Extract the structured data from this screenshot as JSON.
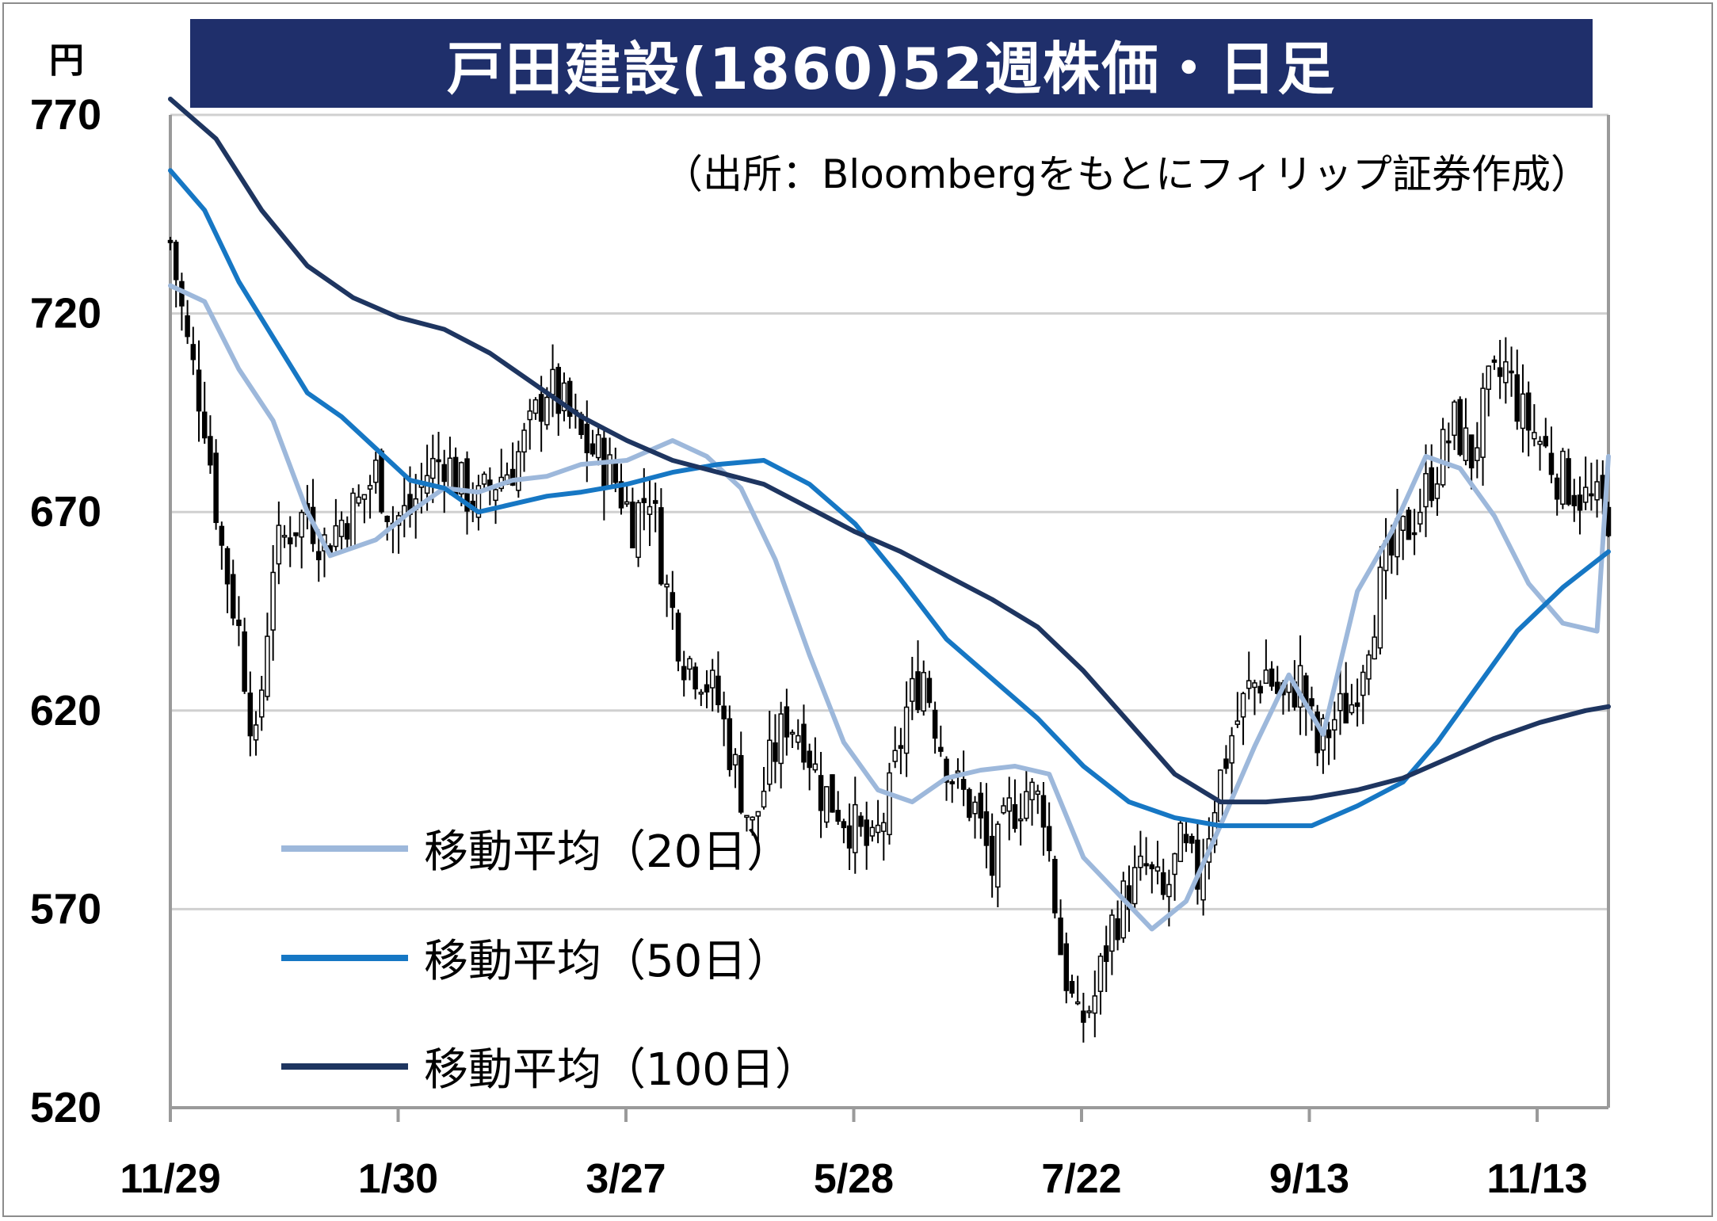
{
  "title": "戸田建設(1860)52週株価・日足",
  "unit": "円",
  "source": "（出所：Bloombergをもとにフィリップ証券作成）",
  "colors": {
    "title_bg": "#1f2f6b",
    "ma20": "#9db8db",
    "ma50": "#1677c4",
    "ma100": "#1e3560",
    "grid": "#d0d0d0",
    "axis": "#9a9a9a"
  },
  "legend": [
    {
      "label": "移動平均（20日）",
      "color": "#9db8db"
    },
    {
      "label": "移動平均（50日）",
      "color": "#1677c4"
    },
    {
      "label": "移動平均（100日）",
      "color": "#1e3560"
    }
  ],
  "chart_data": {
    "type": "candlestick",
    "title": "戸田建設(1860)52週株価・日足",
    "ylabel": "円",
    "ylim": [
      520,
      770
    ],
    "yticks": [
      770,
      720,
      670,
      620,
      570,
      520
    ],
    "xticks": [
      "11/29",
      "1/30",
      "3/27",
      "5/28",
      "7/22",
      "9/13",
      "11/13"
    ],
    "grid": true,
    "legend_position": "bottom-left",
    "close_path": [
      [
        0,
        738
      ],
      [
        3,
        712
      ],
      [
        6,
        694
      ],
      [
        9,
        661
      ],
      [
        12,
        640
      ],
      [
        15,
        610
      ],
      [
        18,
        658
      ],
      [
        21,
        666
      ],
      [
        24,
        670
      ],
      [
        27,
        662
      ],
      [
        30,
        668
      ],
      [
        33,
        672
      ],
      [
        36,
        680
      ],
      [
        39,
        668
      ],
      [
        42,
        670
      ],
      [
        45,
        680
      ],
      [
        48,
        684
      ],
      [
        51,
        676
      ],
      [
        54,
        672
      ],
      [
        57,
        678
      ],
      [
        60,
        682
      ],
      [
        63,
        690
      ],
      [
        66,
        702
      ],
      [
        69,
        696
      ],
      [
        72,
        688
      ],
      [
        75,
        684
      ],
      [
        78,
        678
      ],
      [
        81,
        668
      ],
      [
        84,
        676
      ],
      [
        87,
        650
      ],
      [
        90,
        634
      ],
      [
        93,
        630
      ],
      [
        96,
        622
      ],
      [
        99,
        605
      ],
      [
        102,
        590
      ],
      [
        105,
        606
      ],
      [
        108,
        618
      ],
      [
        111,
        614
      ],
      [
        114,
        600
      ],
      [
        117,
        596
      ],
      [
        120,
        590
      ],
      [
        123,
        584
      ],
      [
        126,
        598
      ],
      [
        129,
        620
      ],
      [
        132,
        630
      ],
      [
        135,
        612
      ],
      [
        138,
        600
      ],
      [
        141,
        595
      ],
      [
        144,
        580
      ],
      [
        147,
        594
      ],
      [
        150,
        600
      ],
      [
        153,
        596
      ],
      [
        156,
        560
      ],
      [
        159,
        540
      ],
      [
        162,
        548
      ],
      [
        165,
        566
      ],
      [
        168,
        575
      ],
      [
        171,
        580
      ],
      [
        174,
        572
      ],
      [
        177,
        585
      ],
      [
        180,
        578
      ],
      [
        183,
        598
      ],
      [
        186,
        614
      ],
      [
        189,
        625
      ],
      [
        192,
        630
      ],
      [
        195,
        622
      ],
      [
        198,
        628
      ],
      [
        201,
        610
      ],
      [
        204,
        618
      ],
      [
        207,
        622
      ],
      [
        210,
        640
      ],
      [
        213,
        656
      ],
      [
        216,
        664
      ],
      [
        219,
        672
      ],
      [
        222,
        682
      ],
      [
        225,
        692
      ],
      [
        228,
        684
      ],
      [
        231,
        700
      ],
      [
        234,
        706
      ],
      [
        237,
        694
      ],
      [
        240,
        688
      ],
      [
        243,
        680
      ],
      [
        246,
        676
      ],
      [
        249,
        672
      ],
      [
        252,
        670
      ]
    ],
    "series": [
      {
        "name": "移動平均（20日）",
        "points": [
          [
            0,
            727
          ],
          [
            6,
            723
          ],
          [
            12,
            706
          ],
          [
            18,
            693
          ],
          [
            24,
            670
          ],
          [
            28,
            659
          ],
          [
            36,
            663
          ],
          [
            42,
            670
          ],
          [
            48,
            676
          ],
          [
            54,
            675
          ],
          [
            60,
            678
          ],
          [
            66,
            679
          ],
          [
            72,
            682
          ],
          [
            80,
            683
          ],
          [
            88,
            688
          ],
          [
            94,
            684
          ],
          [
            100,
            676
          ],
          [
            106,
            658
          ],
          [
            112,
            634
          ],
          [
            118,
            612
          ],
          [
            124,
            600
          ],
          [
            130,
            597
          ],
          [
            136,
            603
          ],
          [
            142,
            605
          ],
          [
            148,
            606
          ],
          [
            154,
            604
          ],
          [
            160,
            583
          ],
          [
            166,
            574
          ],
          [
            172,
            565
          ],
          [
            178,
            572
          ],
          [
            184,
            591
          ],
          [
            190,
            611
          ],
          [
            196,
            629
          ],
          [
            202,
            614
          ],
          [
            208,
            650
          ],
          [
            214,
            665
          ],
          [
            220,
            684
          ],
          [
            226,
            681
          ],
          [
            232,
            669
          ],
          [
            238,
            652
          ],
          [
            244,
            642
          ],
          [
            250,
            640
          ],
          [
            252,
            684
          ]
        ]
      },
      {
        "name": "移動平均（50日）",
        "points": [
          [
            0,
            756
          ],
          [
            6,
            746
          ],
          [
            12,
            728
          ],
          [
            18,
            714
          ],
          [
            24,
            700
          ],
          [
            30,
            694
          ],
          [
            36,
            686
          ],
          [
            42,
            678
          ],
          [
            48,
            676
          ],
          [
            54,
            670
          ],
          [
            60,
            672
          ],
          [
            66,
            674
          ],
          [
            72,
            675
          ],
          [
            80,
            677
          ],
          [
            88,
            680
          ],
          [
            96,
            682
          ],
          [
            104,
            683
          ],
          [
            112,
            677
          ],
          [
            120,
            667
          ],
          [
            128,
            653
          ],
          [
            136,
            638
          ],
          [
            144,
            628
          ],
          [
            152,
            618
          ],
          [
            160,
            606
          ],
          [
            168,
            597
          ],
          [
            176,
            593
          ],
          [
            184,
            591
          ],
          [
            192,
            591
          ],
          [
            200,
            591
          ],
          [
            208,
            596
          ],
          [
            216,
            602
          ],
          [
            222,
            612
          ],
          [
            228,
            624
          ],
          [
            236,
            640
          ],
          [
            244,
            651
          ],
          [
            252,
            660
          ]
        ]
      },
      {
        "name": "移動平均（100日）",
        "points": [
          [
            0,
            774
          ],
          [
            8,
            764
          ],
          [
            16,
            746
          ],
          [
            24,
            732
          ],
          [
            32,
            724
          ],
          [
            40,
            719
          ],
          [
            48,
            716
          ],
          [
            56,
            710
          ],
          [
            64,
            702
          ],
          [
            72,
            694
          ],
          [
            80,
            688
          ],
          [
            88,
            683
          ],
          [
            96,
            680
          ],
          [
            104,
            677
          ],
          [
            112,
            671
          ],
          [
            120,
            665
          ],
          [
            128,
            660
          ],
          [
            136,
            654
          ],
          [
            144,
            648
          ],
          [
            152,
            641
          ],
          [
            160,
            630
          ],
          [
            168,
            617
          ],
          [
            176,
            604
          ],
          [
            184,
            597
          ],
          [
            192,
            597
          ],
          [
            200,
            598
          ],
          [
            208,
            600
          ],
          [
            216,
            603
          ],
          [
            224,
            608
          ],
          [
            232,
            613
          ],
          [
            240,
            617
          ],
          [
            248,
            620
          ],
          [
            252,
            621
          ]
        ]
      }
    ]
  }
}
